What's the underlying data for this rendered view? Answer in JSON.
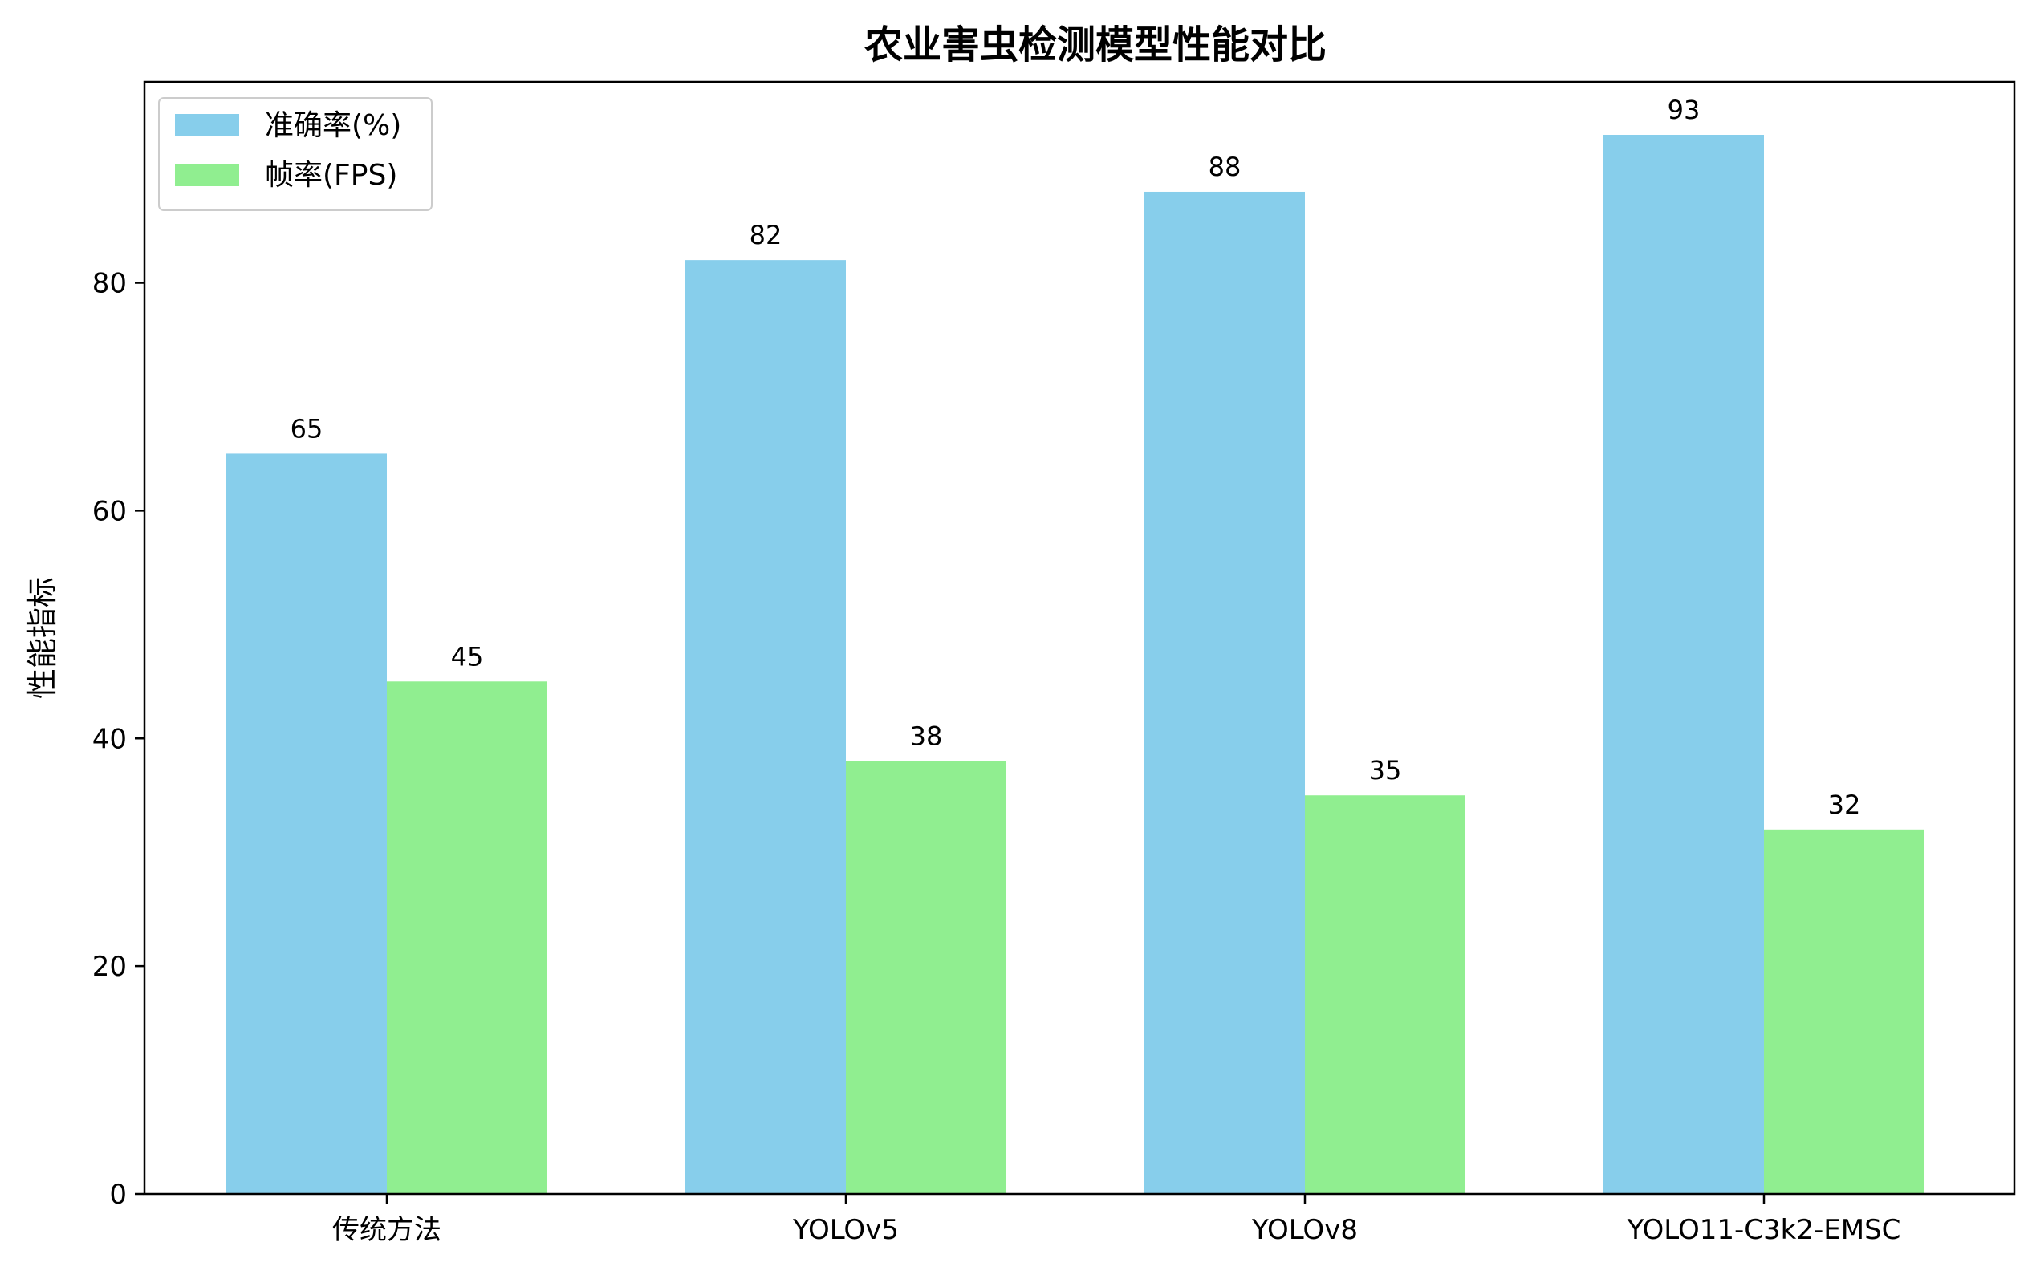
{
  "chart_data": {
    "type": "bar",
    "title": "农业害虫检测模型性能对比",
    "xlabel": "",
    "ylabel": "性能指标",
    "categories": [
      "传统方法",
      "YOLOv5",
      "YOLOv8",
      "YOLO11-C3k2-EMSC"
    ],
    "series": [
      {
        "name": "准确率(%)",
        "values": [
          65,
          82,
          88,
          93
        ],
        "color": "#87CEEB"
      },
      {
        "name": "帧率(FPS)",
        "values": [
          45,
          38,
          35,
          32
        ],
        "color": "#90EE90"
      }
    ],
    "ylim": [
      0,
      97.65
    ],
    "yticks": [
      0,
      20,
      40,
      60,
      80
    ],
    "grid": false,
    "legend_position": "top-left",
    "data_labels": true
  }
}
